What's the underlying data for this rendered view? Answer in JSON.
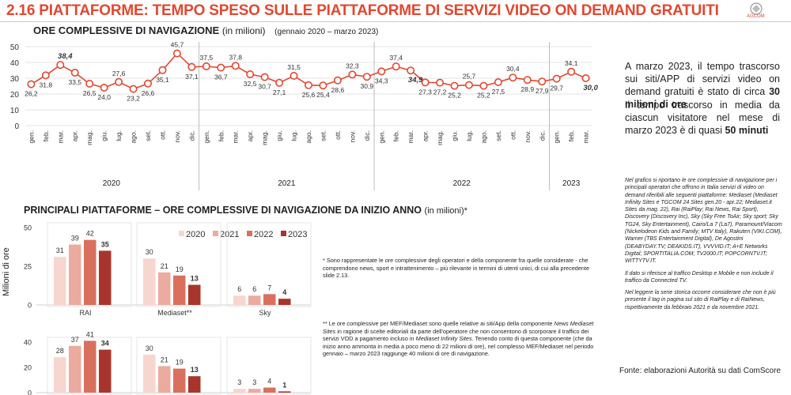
{
  "header": {
    "title": "2.16 PIATTAFORME: TEMPO SPESO SULLE PIATTAFORME DI SERVIZI VIDEO ON DEMAND GRATUITI",
    "logo_text": "AGCOM"
  },
  "line_section": {
    "title": "ORE COMPLESSIVE DI NAVIGAZIONE",
    "unit": "(in milioni)",
    "period": "(gennaio 2020 – marzo 2023)"
  },
  "bar_section": {
    "title": "PRINCIPALI PIATTAFORME – ORE COMPLESSIVE DI NAVIGAZIONE DA INIZIO ANNO",
    "unit": "(in milioni)*"
  },
  "side": {
    "para1": "A marzo 2023, il tempo trascorso sui siti/APP di servizi video on demand gratuiti è stato di circa",
    "para1_bold": "30 milioni di ore",
    "para2": "Il tempo trascorso in media da ciascun visitatore nel mese di marzo 2023 è di quasi",
    "para2_bold": "50 minuti"
  },
  "notes": {
    "note1": "Nel grafico si riportano le ore complessive di navigazione per i principali operatori che offrono in Italia servizi di video on demand riferibili alle seguenti piattaforme: Mediaset (Mediaset Infinity Sites e TGCOM 24 Sites gen.20 - apr.22; Mediaset.it Sites da mag. 22), Rai (RaiPlay; Rai News, Rai Sport), Discovery (Discovery Inc), Sky (Sky Free ToAir; Sky sport; Sky TG24, Sky Entertainment), Cairo/La 7 (La7), Paramount/Viacom (Nickelodeon Kids and Family; MTV Italy), Rakuten (VIKI.COM), Warner (TBS Entertainment Digital), De Agostini (DEABYDAY.TV; DEAKIDS.IT), VVVVID.IT; A+E Networks Digital; SPORTITALIA.COM; TV2000.IT; POPCORNTV.IT; WITTYTV.IT.",
    "note2": "Il dato si riferisce al traffico Desktop e Mobile e non include il traffico da Connected TV.",
    "note3": "Nel leggere la serie storica occorre considerare che non è più presente il tag in pagina sul sito di RaiPlay e di RaiNews, rispettivamente da febbraio 2021 e da novembre 2021."
  },
  "footnotes": {
    "fn1": "* Sono rappresentate le ore complessive degli operatori e della componente fra quelle considerate - che comprendono news, sport e intrattenimento – più rilevante in termini di utenti unici, di cui alla precedente slide 2.13.",
    "fn2_a": "** Le ore complessive per MEF/Mediaset sono quelle relative ai siti/App della componente ",
    "fn2_italic1": "News Mediaset Sites",
    "fn2_b": " in ragione di scelte editoriali da parte dell'operatore che non consentono di scorporare il traffico dei servizi VOD a pagamento incluso in ",
    "fn2_italic2": "Mediaset Infinity Sites",
    "fn2_c": ". Tenendo conto di questa componente (che da inizio anno ammonta in media a poco meno di 22 milioni di ore), nel complesso MEF/Mediaset nel periodo gennaio – marzo 2023 raggiunge 40 milioni di ore di navigazione."
  },
  "source": "Fonte: elaborazioni Autorità su dati ComScore",
  "chart_data": [
    {
      "type": "line",
      "title": "ORE COMPLESSIVE DI NAVIGAZIONE (in milioni)",
      "ylim": [
        0,
        50
      ],
      "yticks": [
        0,
        10,
        20,
        30,
        40,
        50
      ],
      "grid": true,
      "x": [
        "gen.",
        "feb.",
        "mar.",
        "apr.",
        "mag.",
        "giu.",
        "lug.",
        "ago.",
        "set.",
        "ott.",
        "nov.",
        "dic.",
        "gen.",
        "feb.",
        "mar.",
        "apr.",
        "mag.",
        "giu.",
        "lug.",
        "ago.",
        "set.",
        "ott.",
        "nov.",
        "dic.",
        "gen.",
        "feb.",
        "mar.",
        "apr.",
        "mag.",
        "giu.",
        "lug.",
        "ago.",
        "set.",
        "ott.",
        "nov.",
        "dic.",
        "gen.",
        "feb.",
        "mar."
      ],
      "years": [
        {
          "label": "2020",
          "start": 0,
          "end": 11
        },
        {
          "label": "2021",
          "start": 12,
          "end": 23
        },
        {
          "label": "2022",
          "start": 24,
          "end": 35
        },
        {
          "label": "2023",
          "start": 36,
          "end": 38
        }
      ],
      "values": [
        26.2,
        31.8,
        38.4,
        33.5,
        26.5,
        24.0,
        27.6,
        23.2,
        26.6,
        35.1,
        45.7,
        37.1,
        37.5,
        36.7,
        37.8,
        32.5,
        30.7,
        27.1,
        31.5,
        25.6,
        25.4,
        28.6,
        32.3,
        30.9,
        34.3,
        37.4,
        34.9,
        27.3,
        27.2,
        25.2,
        25.7,
        25.2,
        27.5,
        30.4,
        28.9,
        27.9,
        29.7,
        34.1,
        30.0
      ],
      "labels": [
        "26,2",
        "31,8",
        "38,4",
        "33,5",
        "26,5",
        "24,0",
        "27,6",
        "23,2",
        "26,6",
        "35,1",
        "45,7",
        "37,1",
        "37,5",
        "36,7",
        "37,8",
        "32,5",
        "30,7",
        "27,1",
        "31,5",
        "25,6",
        "25,4",
        "28,6",
        "32,3",
        "30,9",
        "34,3",
        "37,4",
        "34,9",
        "27,3",
        "27,2",
        "25,2",
        "25,7",
        "25,2",
        "27,5",
        "30,4",
        "28,9",
        "27,9",
        "29,7",
        "34,1",
        "30,0"
      ],
      "bold_labels": [
        2,
        26,
        38
      ],
      "color": "#e2472f"
    },
    {
      "type": "bar",
      "ylabel": "Milioni di ore",
      "ylim": [
        0,
        50
      ],
      "yticks": [
        0,
        25,
        50
      ],
      "legend": "top",
      "series": [
        {
          "name": "2020",
          "color": "#f6d6cf"
        },
        {
          "name": "2021",
          "color": "#ebab9f"
        },
        {
          "name": "2022",
          "color": "#d9705e"
        },
        {
          "name": "2023",
          "color": "#a8352b"
        }
      ],
      "categories": [
        "RAI",
        "Mediaset**",
        "Sky"
      ],
      "values": [
        [
          31,
          39,
          42,
          35
        ],
        [
          30,
          21,
          19,
          13
        ],
        [
          6,
          6,
          7,
          4
        ]
      ]
    },
    {
      "type": "bar",
      "ylim": [
        0,
        40
      ],
      "yticks": [
        0,
        20,
        40
      ],
      "series": [
        {
          "name": "2020",
          "color": "#f6d6cf"
        },
        {
          "name": "2021",
          "color": "#ebab9f"
        },
        {
          "name": "2022",
          "color": "#d9705e"
        },
        {
          "name": "2023",
          "color": "#a8352b"
        }
      ],
      "categories": [
        "",
        "",
        ""
      ],
      "values": [
        [
          28,
          37,
          41,
          34
        ],
        [
          30,
          21,
          19,
          13
        ],
        [
          3,
          3,
          4,
          1
        ]
      ]
    }
  ]
}
